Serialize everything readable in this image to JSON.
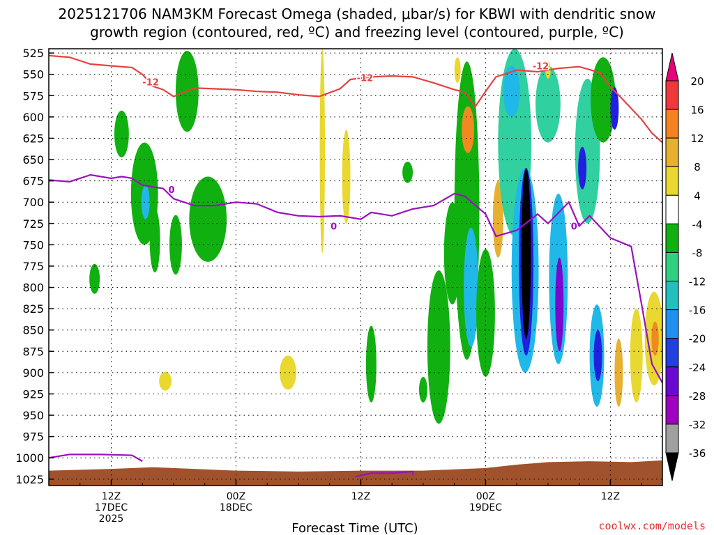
{
  "chart_data": {
    "type": "contour",
    "title_line1": "2025121706 NAM3KM Forecast Omega (shaded, μbar/s) for KBWI with dendritic snow",
    "title_line2": "growth region (contoured, red, ºC) and freezing level (contoured, purple, ºC)",
    "xlabel": "Forecast Time (UTC)",
    "credit": "coolwx.com/models",
    "x_range_hours": [
      0,
      59
    ],
    "y_levels": [
      "525",
      "550",
      "575",
      "600",
      "625",
      "650",
      "675",
      "700",
      "725",
      "750",
      "775",
      "800",
      "825",
      "850",
      "875",
      "900",
      "925",
      "950",
      "975",
      "1000",
      "1025"
    ],
    "x_ticks": [
      {
        "hour": 6,
        "lines": [
          "12Z",
          "17DEC",
          "2025"
        ]
      },
      {
        "hour": 18,
        "lines": [
          "00Z",
          "18DEC"
        ]
      },
      {
        "hour": 30,
        "lines": [
          "12Z"
        ]
      },
      {
        "hour": 42,
        "lines": [
          "00Z",
          "19DEC"
        ]
      },
      {
        "hour": 54,
        "lines": [
          "12Z"
        ]
      }
    ],
    "colorbar": {
      "labels": [
        "20",
        "16",
        "12",
        "8",
        "4",
        "-4",
        "-8",
        "-12",
        "-16",
        "-20",
        "-24",
        "-28",
        "-32",
        "-36"
      ],
      "colors": [
        "#e8007a",
        "#f03838",
        "#f58220",
        "#e8b030",
        "#e8d830",
        "#ffffff",
        "#10b010",
        "#30d080",
        "#20c0c0",
        "#2090f0",
        "#2040e0",
        "#6a0ad0",
        "#a000c0",
        "#a0a0a0",
        "#000000"
      ]
    },
    "dendritic_line": {
      "label": "-12",
      "color": "#e84040",
      "points": [
        [
          0,
          528
        ],
        [
          2,
          530
        ],
        [
          4,
          538
        ],
        [
          6,
          540
        ],
        [
          8,
          542
        ],
        [
          9,
          550
        ],
        [
          10,
          564
        ],
        [
          11,
          568
        ],
        [
          12,
          576
        ],
        [
          14,
          566
        ],
        [
          16,
          567
        ],
        [
          18,
          568
        ],
        [
          20,
          570
        ],
        [
          22,
          571
        ],
        [
          24,
          574
        ],
        [
          26,
          576
        ],
        [
          28,
          567
        ],
        [
          29,
          556
        ],
        [
          31,
          553
        ],
        [
          33,
          552
        ],
        [
          35,
          553
        ],
        [
          37,
          560
        ],
        [
          39,
          568
        ],
        [
          40,
          571
        ],
        [
          41,
          588
        ],
        [
          42,
          570
        ],
        [
          43,
          553
        ],
        [
          45,
          545
        ],
        [
          47,
          547
        ],
        [
          49,
          543
        ],
        [
          51,
          541
        ],
        [
          53,
          548
        ],
        [
          54,
          565
        ],
        [
          55,
          577
        ],
        [
          56,
          590
        ],
        [
          57,
          603
        ],
        [
          58,
          619
        ],
        [
          59,
          630
        ]
      ]
    },
    "freezing_line": {
      "label": "0",
      "color": "#9a10c0",
      "points": [
        [
          0,
          674
        ],
        [
          2,
          676
        ],
        [
          4,
          668
        ],
        [
          6,
          672
        ],
        [
          7,
          670
        ],
        [
          8,
          672
        ],
        [
          9,
          680
        ],
        [
          11,
          684
        ],
        [
          12,
          696
        ],
        [
          14,
          704
        ],
        [
          16,
          704
        ],
        [
          18,
          700
        ],
        [
          20,
          702
        ],
        [
          22,
          712
        ],
        [
          24,
          716
        ],
        [
          26,
          717
        ],
        [
          28,
          716
        ],
        [
          30,
          720
        ],
        [
          31,
          712
        ],
        [
          33,
          716
        ],
        [
          35,
          708
        ],
        [
          37,
          704
        ],
        [
          39,
          690
        ],
        [
          40,
          693
        ],
        [
          42,
          714
        ],
        [
          43,
          740
        ],
        [
          45,
          733
        ],
        [
          47,
          714
        ],
        [
          48,
          725
        ],
        [
          50,
          700
        ],
        [
          51,
          728
        ],
        [
          52,
          716
        ],
        [
          54,
          742
        ],
        [
          56,
          752
        ],
        [
          57,
          820
        ],
        [
          58,
          890
        ],
        [
          59,
          912
        ]
      ]
    },
    "freezing_line_low": {
      "points": [
        [
          0,
          1000
        ],
        [
          2,
          996
        ],
        [
          5,
          996
        ],
        [
          8,
          997
        ],
        [
          9,
          1004
        ]
      ]
    },
    "freezing_line_bottom": {
      "points": [
        [
          29.5,
          1022
        ],
        [
          31,
          1018
        ],
        [
          33,
          1018
        ],
        [
          35,
          1016
        ],
        [
          35,
          1020
        ]
      ]
    },
    "terrain_top_hpa": 1012,
    "omega_features": [
      {
        "x": 7,
        "p": 620,
        "w": 0.7,
        "h": 55,
        "v": -8
      },
      {
        "x": 9.2,
        "p": 690,
        "w": 1.3,
        "h": 120,
        "v": -8
      },
      {
        "x": 9.3,
        "p": 700,
        "w": 0.4,
        "h": 40,
        "v": -16
      },
      {
        "x": 13.3,
        "p": 570,
        "w": 1.1,
        "h": 95,
        "v": -8
      },
      {
        "x": 15.3,
        "p": 720,
        "w": 1.8,
        "h": 100,
        "v": -8
      },
      {
        "x": 12.2,
        "p": 750,
        "w": 0.6,
        "h": 70,
        "v": -8
      },
      {
        "x": 26.3,
        "p": 640,
        "w": 0.25,
        "h": 240,
        "v": 6
      },
      {
        "x": 28.6,
        "p": 670,
        "w": 0.4,
        "h": 110,
        "v": 6
      },
      {
        "x": 10.2,
        "p": 745,
        "w": 0.5,
        "h": 75,
        "v": -8
      },
      {
        "x": 4.4,
        "p": 790,
        "w": 0.5,
        "h": 35,
        "v": -8
      },
      {
        "x": 23,
        "p": 900,
        "w": 0.8,
        "h": 40,
        "v": 6
      },
      {
        "x": 11.2,
        "p": 910,
        "w": 0.6,
        "h": 22,
        "v": 6
      },
      {
        "x": 31,
        "p": 890,
        "w": 0.5,
        "h": 90,
        "v": -8
      },
      {
        "x": 34.5,
        "p": 665,
        "w": 0.5,
        "h": 25,
        "v": -8
      },
      {
        "x": 37.5,
        "p": 870,
        "w": 1.1,
        "h": 180,
        "v": -8
      },
      {
        "x": 38.8,
        "p": 760,
        "w": 0.8,
        "h": 120,
        "v": -8
      },
      {
        "x": 40.2,
        "p": 710,
        "w": 1.2,
        "h": 350,
        "v": -8
      },
      {
        "x": 40.3,
        "p": 615,
        "w": 0.6,
        "h": 55,
        "v": 12
      },
      {
        "x": 40.6,
        "p": 800,
        "w": 0.7,
        "h": 140,
        "v": -16
      },
      {
        "x": 42,
        "p": 830,
        "w": 0.9,
        "h": 150,
        "v": -8
      },
      {
        "x": 43.2,
        "p": 720,
        "w": 0.5,
        "h": 90,
        "v": 8
      },
      {
        "x": 44.8,
        "p": 630,
        "w": 1.6,
        "h": 220,
        "v": -12
      },
      {
        "x": 44.5,
        "p": 570,
        "w": 0.8,
        "h": 60,
        "v": -16
      },
      {
        "x": 45.8,
        "p": 780,
        "w": 1.3,
        "h": 240,
        "v": -16
      },
      {
        "x": 45.9,
        "p": 770,
        "w": 0.7,
        "h": 220,
        "v": -24
      },
      {
        "x": 45.9,
        "p": 760,
        "w": 0.45,
        "h": 200,
        "v": -36
      },
      {
        "x": 49,
        "p": 790,
        "w": 0.9,
        "h": 200,
        "v": -16
      },
      {
        "x": 49.1,
        "p": 820,
        "w": 0.4,
        "h": 110,
        "v": -28
      },
      {
        "x": 48,
        "p": 585,
        "w": 1.2,
        "h": 90,
        "v": -12
      },
      {
        "x": 51.8,
        "p": 640,
        "w": 1.2,
        "h": 170,
        "v": -12
      },
      {
        "x": 51.3,
        "p": 660,
        "w": 0.4,
        "h": 50,
        "v": -24
      },
      {
        "x": 52.7,
        "p": 880,
        "w": 0.7,
        "h": 120,
        "v": -16
      },
      {
        "x": 52.8,
        "p": 880,
        "w": 0.4,
        "h": 60,
        "v": -24
      },
      {
        "x": 53.3,
        "p": 580,
        "w": 1.2,
        "h": 100,
        "v": -8
      },
      {
        "x": 54.4,
        "p": 590,
        "w": 0.4,
        "h": 50,
        "v": -24
      },
      {
        "x": 54.8,
        "p": 900,
        "w": 0.4,
        "h": 80,
        "v": 8
      },
      {
        "x": 56.5,
        "p": 880,
        "w": 0.6,
        "h": 110,
        "v": 4
      },
      {
        "x": 58.2,
        "p": 860,
        "w": 0.9,
        "h": 110,
        "v": 6
      },
      {
        "x": 58.3,
        "p": 860,
        "w": 0.35,
        "h": 40,
        "v": 12
      },
      {
        "x": 39.3,
        "p": 545,
        "w": 0.3,
        "h": 30,
        "v": 6
      },
      {
        "x": 48,
        "p": 545,
        "w": 0.25,
        "h": 20,
        "v": 6
      },
      {
        "x": 36,
        "p": 920,
        "w": 0.4,
        "h": 30,
        "v": -8
      }
    ]
  }
}
